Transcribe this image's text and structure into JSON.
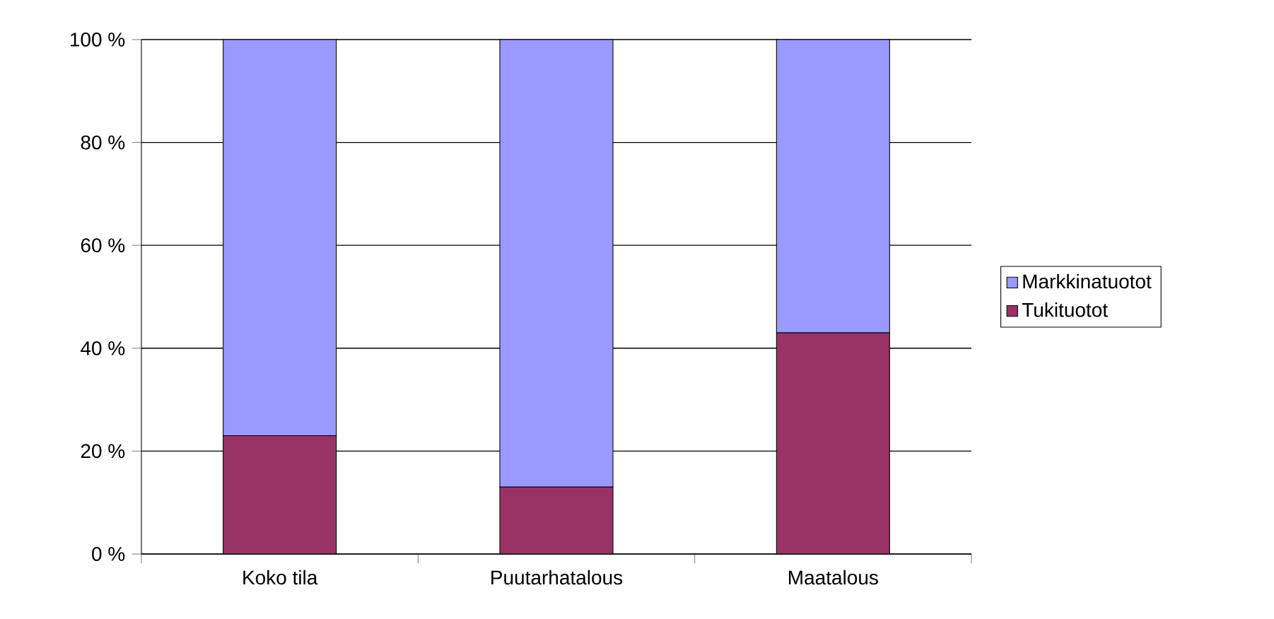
{
  "chart_data": {
    "type": "bar",
    "stacked": true,
    "categories": [
      "Koko tila",
      "Puutarhatalous",
      "Maatalous"
    ],
    "series": [
      {
        "name": "Tukituotot",
        "color": "#993366",
        "values": [
          23,
          13,
          43
        ]
      },
      {
        "name": "Markkinatuotot",
        "color": "#9999ff",
        "values": [
          77,
          87,
          57
        ]
      }
    ],
    "ylim": [
      0,
      100
    ],
    "yticks": [
      {
        "value": 0,
        "label": "0 %"
      },
      {
        "value": 20,
        "label": "20 %"
      },
      {
        "value": 40,
        "label": "40 %"
      },
      {
        "value": 60,
        "label": "60 %"
      },
      {
        "value": 80,
        "label": "80 %"
      },
      {
        "value": 100,
        "label": "100 %"
      }
    ],
    "grid": "y",
    "legend": "right"
  }
}
